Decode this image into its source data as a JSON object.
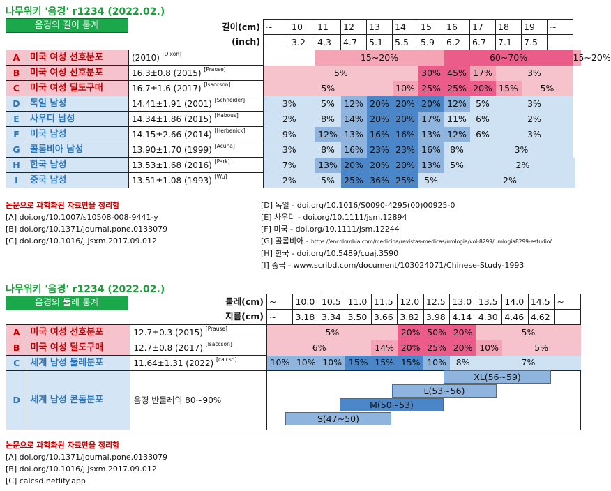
{
  "section1": {
    "title": "나무위키 '음경' r1234 (2022.02.)",
    "subtitle": "음경의 길이 통계",
    "row_cm_label": "길이(cm)",
    "row_in_label": "(inch)",
    "cm": [
      "~",
      "10",
      "11",
      "12",
      "13",
      "14",
      "15",
      "16",
      "17",
      "18",
      "19",
      "~"
    ],
    "inch": [
      "",
      "3.2",
      "4.3",
      "4.7",
      "5.1",
      "5.5",
      "5.9",
      "6.2",
      "6.7",
      "7.1",
      "7.5",
      ""
    ],
    "rows": [
      {
        "letter": "A",
        "name": "미국 여성 선호분포",
        "value": "(2010)",
        "ref": "[Dixon]",
        "sex": "F"
      },
      {
        "letter": "B",
        "name": "미국 여성 선호분포",
        "value": "16.3±0.8 (2015)",
        "ref": "[Prause]",
        "sex": "F"
      },
      {
        "letter": "C",
        "name": "미국 여성 딜도구매",
        "value": "16.7±1.6 (2017)",
        "ref": "[Isaccson]",
        "sex": "F"
      },
      {
        "letter": "D",
        "name": "독일 남성",
        "value": "14.41±1.91 (2001)",
        "ref": "[Schneider]",
        "sex": "M"
      },
      {
        "letter": "E",
        "name": "사우디 남성",
        "value": "14.34±1.86 (2015)",
        "ref": "[Habous]",
        "sex": "M"
      },
      {
        "letter": "F",
        "name": "미국 남성",
        "value": "14.15±2.66 (2014)",
        "ref": "[Herbenick]",
        "sex": "M"
      },
      {
        "letter": "G",
        "name": "콜롬비아 남성",
        "value": "13.90±1.70 (1999)",
        "ref": "[Acuna]",
        "sex": "M"
      },
      {
        "letter": "H",
        "name": "한국 남성",
        "value": "13.53±1.68 (2016)",
        "ref": "[Park]",
        "sex": "M"
      },
      {
        "letter": "I",
        "name": "중국 남성",
        "value": "13.51±1.08 (1993)",
        "ref": "[Wu]",
        "sex": "M"
      }
    ],
    "pct": {
      "A": [
        "",
        "15~20%",
        "60~70%",
        "15~20%"
      ],
      "B": [
        "5%",
        "30%",
        "45%",
        "17%",
        "3%"
      ],
      "C": [
        "5%",
        "10%",
        "25%",
        "25%",
        "20%",
        "15%",
        "5%"
      ],
      "D": [
        "3%",
        "5%",
        "12%",
        "20%",
        "20%",
        "20%",
        "12%",
        "5%",
        "3%"
      ],
      "E": [
        "2%",
        "8%",
        "14%",
        "20%",
        "20%",
        "17%",
        "11%",
        "6%",
        "2%"
      ],
      "F": [
        "9%",
        "12%",
        "13%",
        "16%",
        "16%",
        "13%",
        "12%",
        "6%",
        "3%"
      ],
      "G": [
        "3%",
        "8%",
        "16%",
        "23%",
        "23%",
        "16%",
        "8%",
        "3%"
      ],
      "H": [
        "7%",
        "13%",
        "20%",
        "20%",
        "20%",
        "13%",
        "5%",
        "2%"
      ],
      "I": [
        "2%",
        "5%",
        "25%",
        "36%",
        "25%",
        "5%",
        "2%"
      ]
    },
    "notes_title": "논문으로 과학화된 자료만을 정리함",
    "notes_left": [
      "[A] doi.org/10.1007/s10508-008-9441-y",
      "[B] doi.org/10.1371/journal.pone.0133079",
      "[C] doi.org/10.1016/j.jsxm.2017.09.012"
    ],
    "notes_right": [
      "[D] 독일 - doi.org/10.1016/S0090-4295(00)00925-0",
      "[E] 사우디 - doi.org/10.1111/jsm.12894",
      "[F] 미국 - doi.org/10.1111/jsm.12244",
      "[G] 콜롬비아 - ",
      "[H] 한국 - doi.org/10.5489/cuaj.3590",
      "[I] 중국 - www.scribd.com/document/103024071/Chinese-Study-1993"
    ],
    "note_g_url": "https://encolombia.com/medicina/revistas-medicas/urologia/vol-8299/urologia8299-estudio/"
  },
  "section2": {
    "title": "나무위키 '음경' r1234 (2022.02.)",
    "subtitle": "음경의 둘레 통계",
    "row_cm_label": "둘레(cm)",
    "row_dia_label": "지름(cm)",
    "cm": [
      "~",
      "10.0",
      "10.5",
      "11.0",
      "11.5",
      "12.0",
      "12.5",
      "13.0",
      "13.5",
      "14.0",
      "14.5",
      "~"
    ],
    "dia": [
      "~",
      "3.18",
      "3.34",
      "3.50",
      "3.66",
      "3.82",
      "3.98",
      "4.14",
      "4.30",
      "4.46",
      "4.62",
      ""
    ],
    "rows": [
      {
        "letter": "A",
        "name": "미국 여성 선호분포",
        "value": "12.7±0.3 (2015)",
        "ref": "[Prause]",
        "sex": "F"
      },
      {
        "letter": "B",
        "name": "미국 여성 딜도구매",
        "value": "12.7±0.8 (2017)",
        "ref": "[Isaccson]",
        "sex": "F"
      },
      {
        "letter": "C",
        "name": "세계 남성 둘레분포",
        "value": "11.64±1.31 (2022)",
        "ref": "[calcsd]",
        "sex": "M"
      },
      {
        "letter": "D",
        "name": "세계 남성 콘돔분포",
        "value": "음경 반둘레의 80~90%",
        "ref": "",
        "sex": "M"
      }
    ],
    "pct": {
      "A": [
        "5%",
        "20%",
        "50%",
        "20%",
        "5%"
      ],
      "B": [
        "6%",
        "14%",
        "20%",
        "25%",
        "20%",
        "10%",
        "5%"
      ],
      "C": [
        "10%",
        "10%",
        "10%",
        "15%",
        "15%",
        "15%",
        "10%",
        "8%",
        "7%"
      ]
    },
    "condoms": [
      "XL(56~59)",
      "L(53~56)",
      "M(50~53)",
      "S(47~50)"
    ],
    "notes_title": "논문으로 과학화된 자료만을 정리함",
    "notes": [
      "[A] doi.org/10.1371/journal.pone.0133079",
      "[B] doi.org/10.1016/j.jsxm.2017.09.012",
      "[C] calcsd.netlify.app"
    ]
  }
}
